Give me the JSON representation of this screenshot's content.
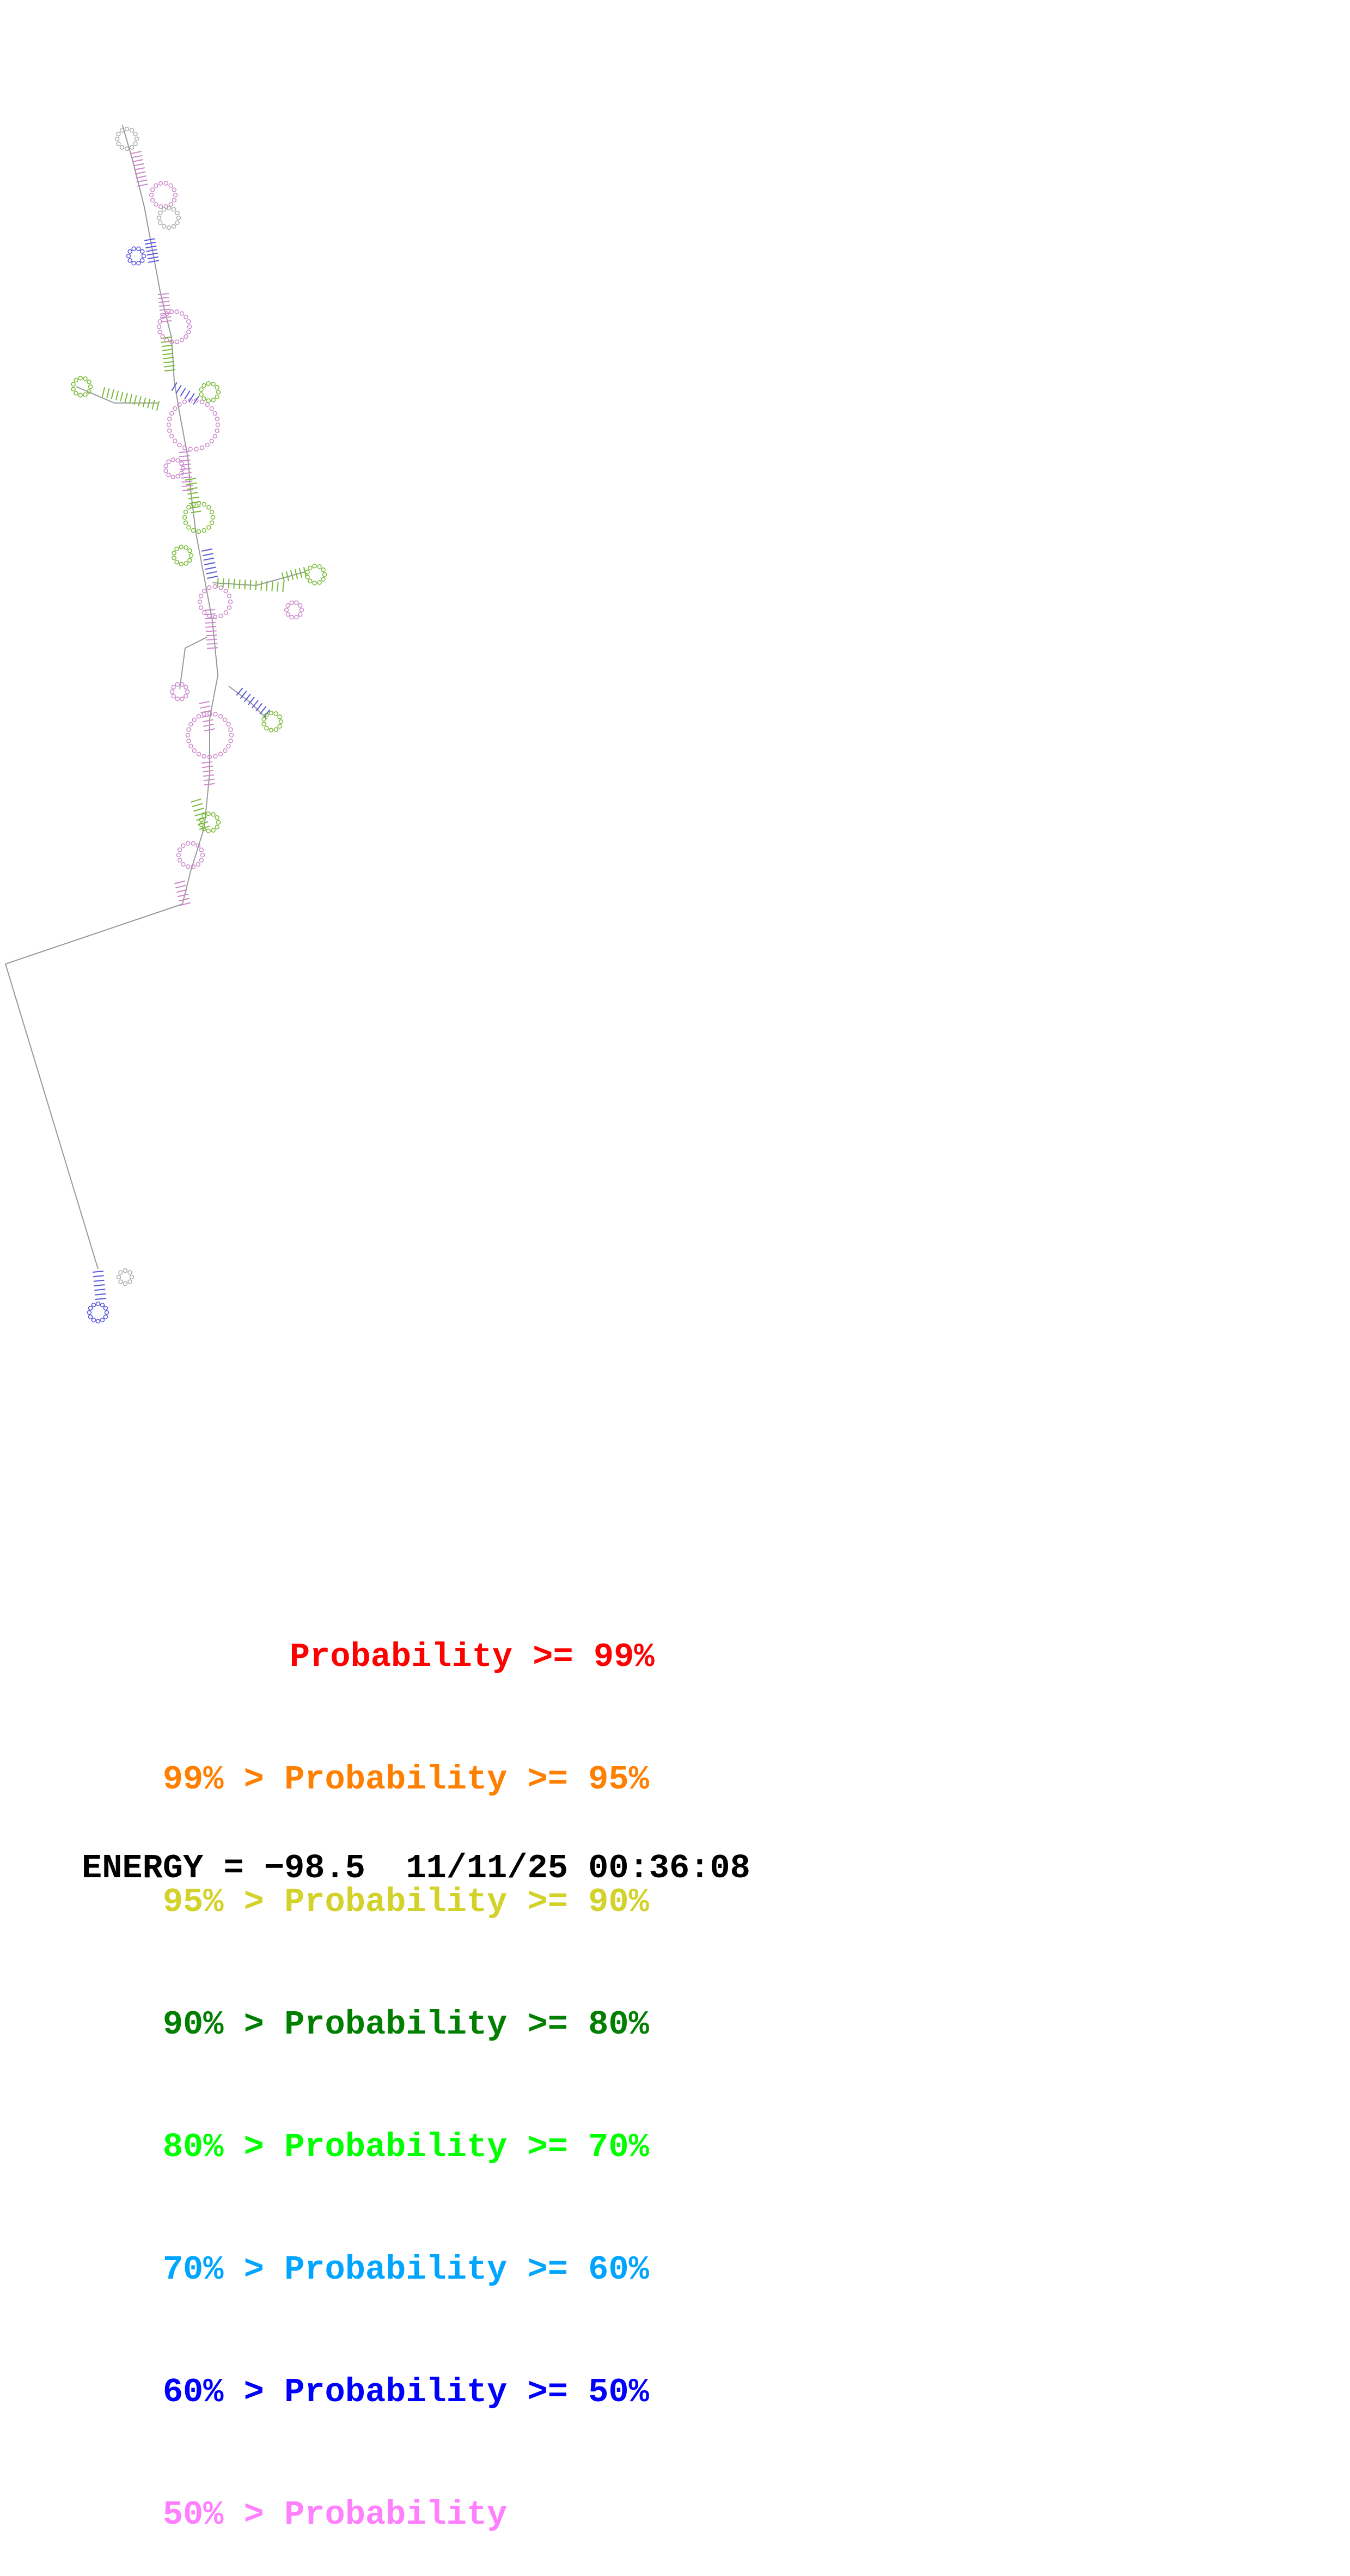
{
  "legend": [
    {
      "prefix": "",
      "label": "Probability >= 99%",
      "color": "#ff0000"
    },
    {
      "prefix": "99% > ",
      "label": "Probability >= 95%",
      "color": "#ff7f00"
    },
    {
      "prefix": "95% > ",
      "label": "Probability >= 90%",
      "color": "#d2d22a"
    },
    {
      "prefix": "90% > ",
      "label": "Probability >= 80%",
      "color": "#007f00"
    },
    {
      "prefix": "80% > ",
      "label": "Probability >= 70%",
      "color": "#00ff00"
    },
    {
      "prefix": "70% > ",
      "label": "Probability >= 60%",
      "color": "#00a5ff"
    },
    {
      "prefix": "60% > ",
      "label": "Probability >= 50%",
      "color": "#0000ff"
    },
    {
      "prefix": "50% > ",
      "label": "Probability",
      "color": "#ff7fff"
    }
  ],
  "footer": {
    "energy_label": "ENERGY = ",
    "energy_value": "−98.5",
    "timestamp": "11/11/25 00:36:08"
  },
  "colors": {
    "backbone": "#999999",
    "pair_low": "#cc88cc",
    "pair_mid": "#5555dd",
    "pair_high": "#77bb33",
    "nucleotide": "#aaaaaa"
  }
}
